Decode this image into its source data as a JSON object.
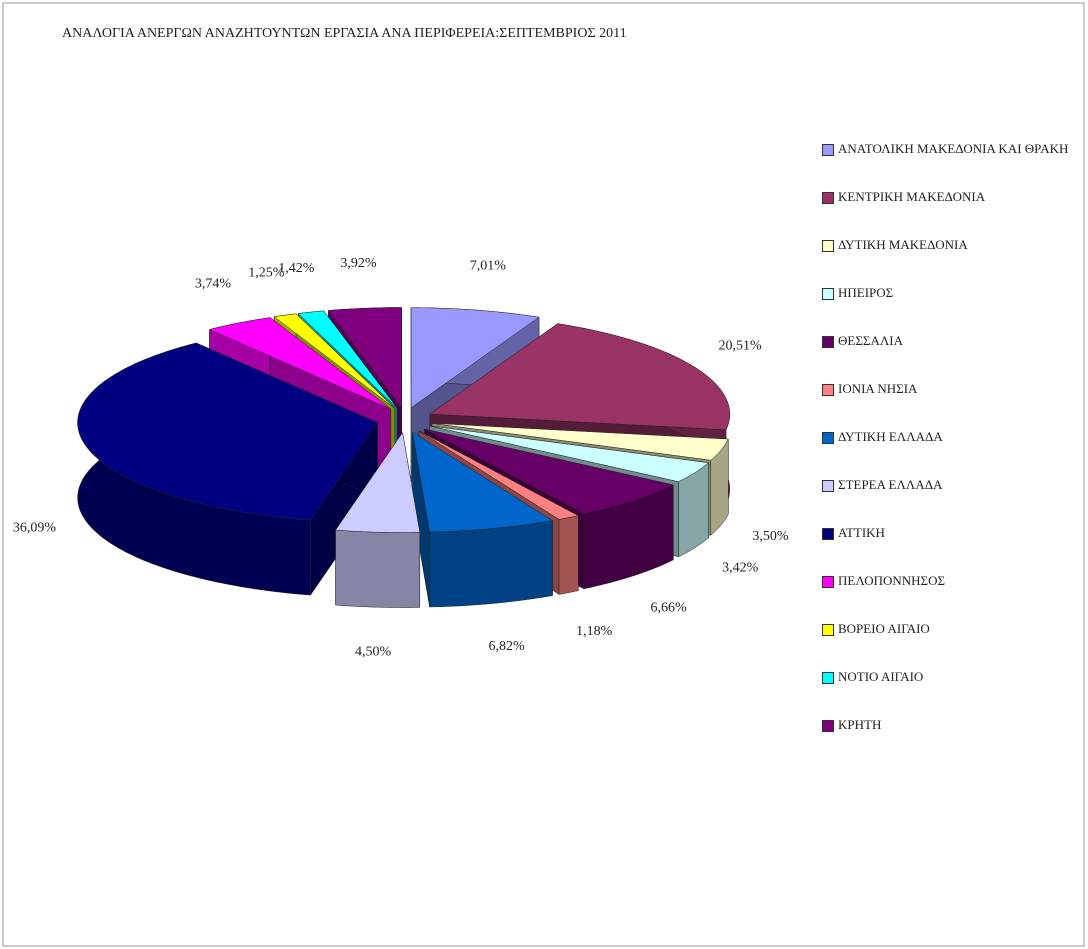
{
  "chart_data": {
    "type": "pie",
    "title": "ΑΝΑΛΟΓΙΑ ΑΝΕΡΓΩΝ ΑΝΑΖΗΤΟΥΝΤΩΝ ΕΡΓΑΣΙΑ ΑΝΑ ΠΕΡΙΦΕΡΕΙΑ:ΣΕΠΤΕΜΒΡΙΟΣ 2011",
    "categories": [
      "ΑΝΑΤΟΛΙΚΗ ΜΑΚΕΔΟΝΙΑ ΚΑΙ ΘΡΑΚΗ",
      "ΚΕΝΤΡΙΚΗ ΜΑΚΕΔΟΝΙΑ",
      "ΔΥΤΙΚΗ ΜΑΚΕΔΟΝΙΑ",
      "ΗΠΕΙΡΟΣ",
      "ΘΕΣΣΑΛΙΑ",
      "ΙΟΝΙΑ ΝΗΣΙΑ",
      "ΔΥΤΙΚΗ ΕΛΛΑΔΑ",
      "ΣΤΕΡΕΑ ΕΛΛΑΔΑ",
      "ΑΤΤΙΚΗ",
      "ΠΕΛΟΠΟΝΝΗΣΟΣ",
      "ΒΟΡΕΙΟ ΑΙΓΑΙΟ",
      "ΝΟΤΙΟ ΑΙΓΑΙΟ",
      "ΚΡΗΤΗ"
    ],
    "values": [
      7.01,
      20.51,
      3.5,
      3.42,
      6.66,
      1.18,
      6.82,
      4.5,
      36.09,
      3.74,
      1.25,
      1.42,
      3.92
    ],
    "value_labels": [
      "7,01%",
      "20,51%",
      "3,50%",
      "3,42%",
      "6,66%",
      "1,18%",
      "6,82%",
      "4,50%",
      "36,09%",
      "3,74%",
      "1,25%",
      "1,42%",
      "3,92%"
    ],
    "colors": [
      "#9999ff",
      "#993366",
      "#ffffcc",
      "#ccffff",
      "#660066",
      "#ff8080",
      "#0066cc",
      "#ccccff",
      "#000080",
      "#ff00ff",
      "#ffff00",
      "#00ffff",
      "#800080"
    ],
    "legend": "right"
  }
}
